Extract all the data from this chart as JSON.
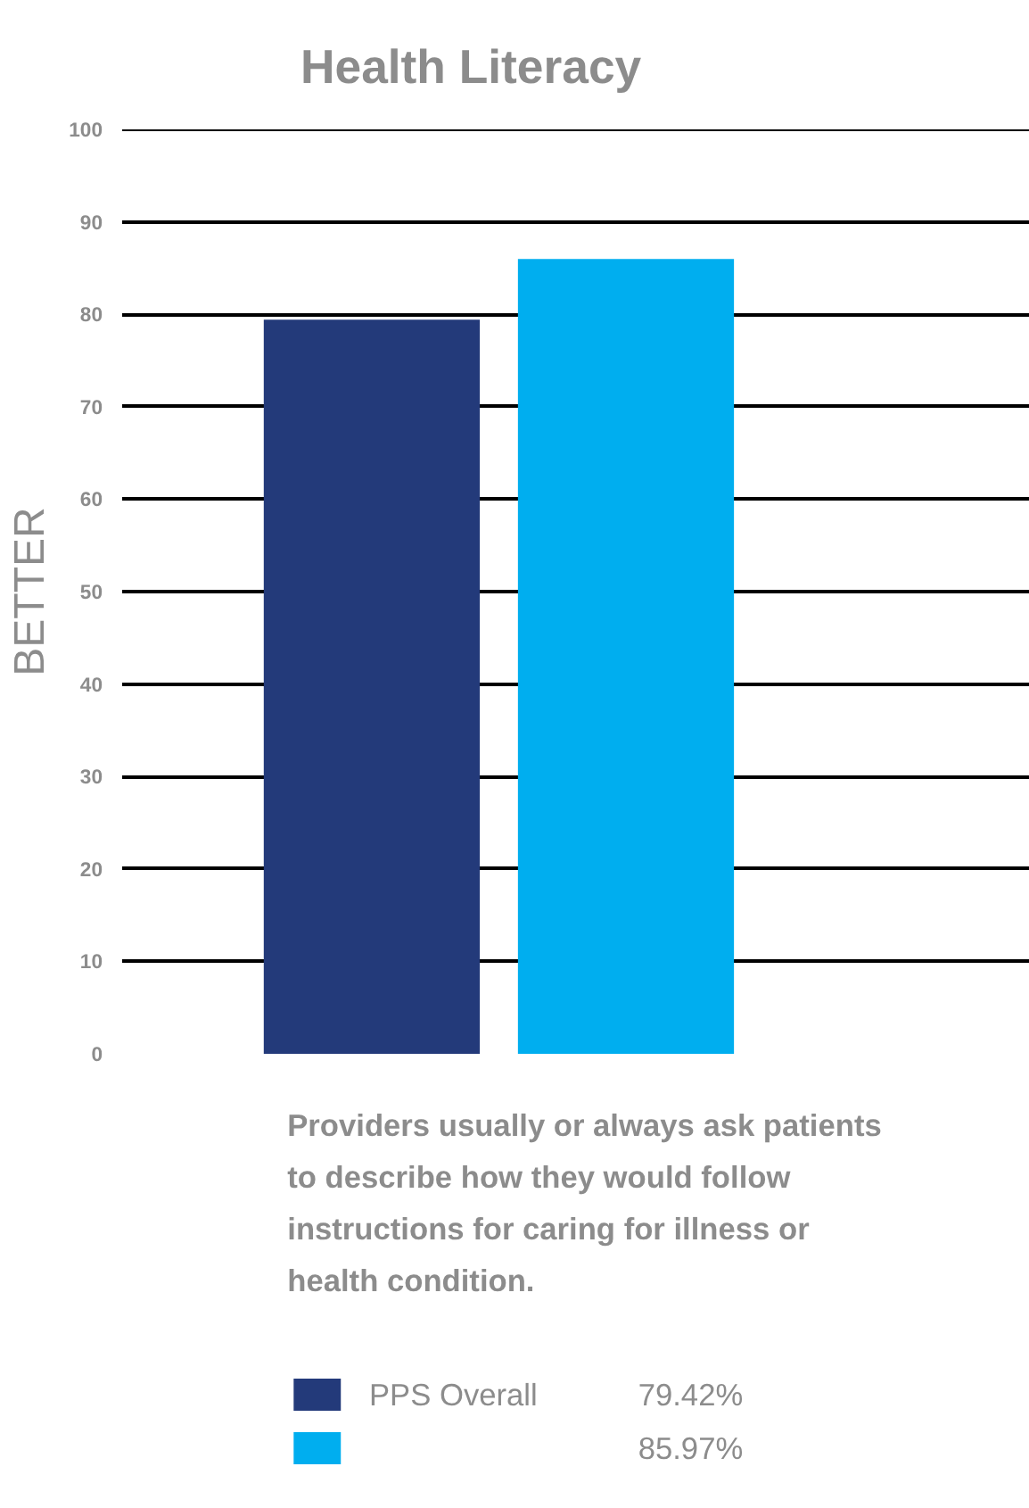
{
  "chart_data": {
    "type": "bar",
    "title": "Health Literacy",
    "ylabel": "BETTER",
    "categories": [
      null
    ],
    "series": [
      {
        "name": "PPS Overall",
        "color": "#233a7a",
        "values": [
          79.42
        ]
      },
      {
        "color": "#00aeef",
        "values": [
          85.97
        ]
      }
    ],
    "ylim": [
      0,
      100
    ],
    "yticks": [
      0,
      10,
      20,
      30,
      40,
      50,
      60,
      70,
      80,
      90,
      100
    ],
    "grid": "y",
    "legend": "bottom",
    "annotations": [
      "Providers usually or always ask patients to describe how they would follow instructions for caring for illness or health condition.",
      "79.42%",
      "85.97%"
    ]
  }
}
